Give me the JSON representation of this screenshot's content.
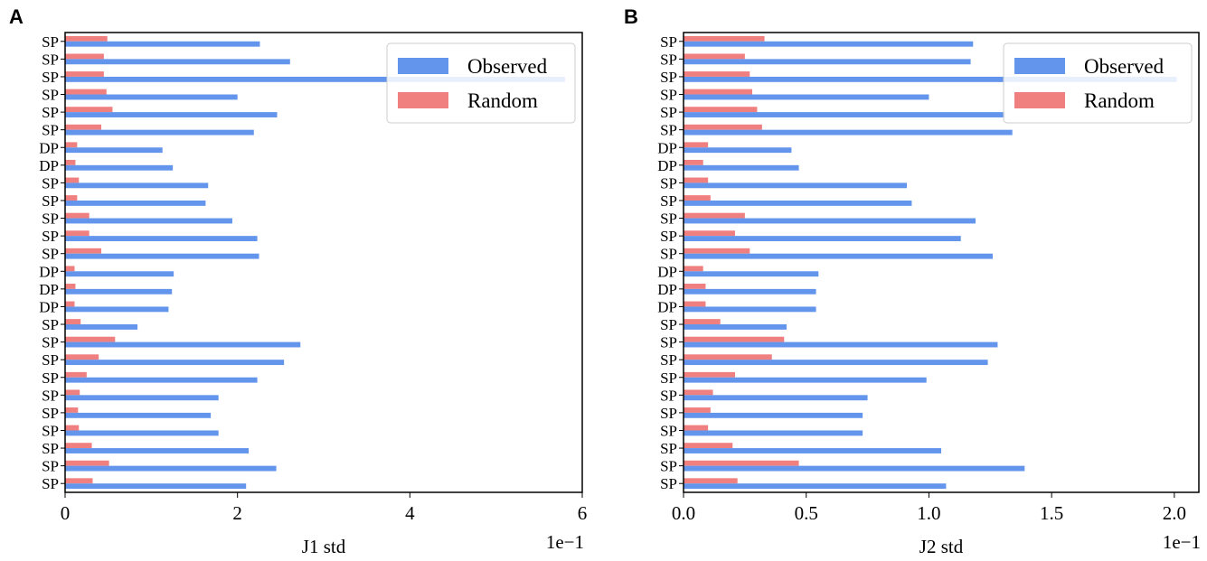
{
  "colors": {
    "observed": "#6495ED",
    "random": "#F08080"
  },
  "chart_data": [
    {
      "type": "bar",
      "orientation": "horizontal",
      "panel_label": "A",
      "xlabel": "J1 std",
      "scale_label": "1e−1",
      "xlim": [
        0,
        6
      ],
      "xticks": [
        "0",
        "2",
        "4",
        "6"
      ],
      "xtick_values": [
        0,
        2,
        4,
        6
      ],
      "legend": {
        "position": "top-right",
        "entries": [
          "Observed",
          "Random"
        ]
      },
      "categories": [
        "SP",
        "SP",
        "SP",
        "SP",
        "SP",
        "SP",
        "DP",
        "DP",
        "SP",
        "SP",
        "SP",
        "SP",
        "SP",
        "DP",
        "DP",
        "DP",
        "SP",
        "SP",
        "SP",
        "SP",
        "SP",
        "SP",
        "SP",
        "SP",
        "SP",
        "SP"
      ],
      "series": [
        {
          "name": "Observed",
          "values": [
            2.26,
            2.61,
            5.8,
            2.0,
            2.46,
            2.19,
            1.13,
            1.25,
            1.66,
            1.63,
            1.94,
            2.23,
            2.25,
            1.26,
            1.24,
            1.2,
            0.84,
            2.73,
            2.54,
            2.23,
            1.78,
            1.69,
            1.78,
            2.13,
            2.45,
            2.1
          ]
        },
        {
          "name": "Random",
          "values": [
            0.49,
            0.45,
            0.45,
            0.48,
            0.55,
            0.42,
            0.14,
            0.12,
            0.16,
            0.14,
            0.28,
            0.28,
            0.42,
            0.11,
            0.12,
            0.11,
            0.18,
            0.58,
            0.39,
            0.25,
            0.17,
            0.15,
            0.16,
            0.31,
            0.51,
            0.32
          ]
        }
      ]
    },
    {
      "type": "bar",
      "orientation": "horizontal",
      "panel_label": "B",
      "xlabel": "J2 std",
      "scale_label": "1e−1",
      "xlim": [
        0,
        2.1
      ],
      "xticks": [
        "0.0",
        "0.5",
        "1.0",
        "1.5",
        "2.0"
      ],
      "xtick_values": [
        0,
        0.5,
        1.0,
        1.5,
        2.0
      ],
      "legend": {
        "position": "top-right",
        "entries": [
          "Observed",
          "Random"
        ]
      },
      "categories": [
        "SP",
        "SP",
        "SP",
        "SP",
        "SP",
        "SP",
        "DP",
        "DP",
        "SP",
        "SP",
        "SP",
        "SP",
        "SP",
        "DP",
        "DP",
        "DP",
        "SP",
        "SP",
        "SP",
        "SP",
        "SP",
        "SP",
        "SP",
        "SP",
        "SP",
        "SP"
      ],
      "series": [
        {
          "name": "Observed",
          "values": [
            1.18,
            1.17,
            2.01,
            1.0,
            1.31,
            1.34,
            0.44,
            0.47,
            0.91,
            0.93,
            1.19,
            1.13,
            1.26,
            0.55,
            0.54,
            0.54,
            0.42,
            1.28,
            1.24,
            0.99,
            0.75,
            0.73,
            0.73,
            1.05,
            1.39,
            1.07
          ]
        },
        {
          "name": "Random",
          "values": [
            0.33,
            0.25,
            0.27,
            0.28,
            0.3,
            0.32,
            0.1,
            0.08,
            0.1,
            0.11,
            0.25,
            0.21,
            0.27,
            0.08,
            0.09,
            0.09,
            0.15,
            0.41,
            0.36,
            0.21,
            0.12,
            0.11,
            0.1,
            0.2,
            0.47,
            0.22
          ]
        }
      ]
    }
  ]
}
